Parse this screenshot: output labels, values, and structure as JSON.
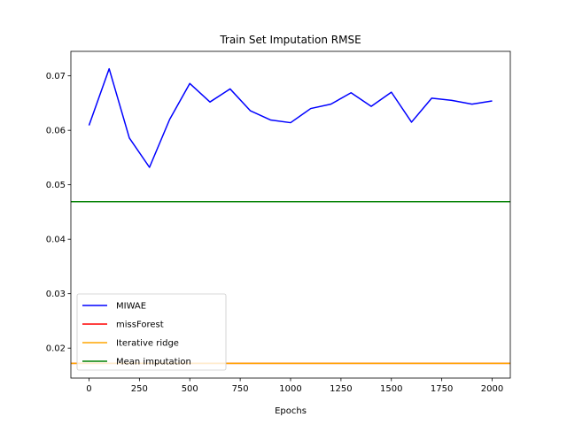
{
  "chart_data": {
    "type": "line",
    "title": "Train Set Imputation RMSE",
    "xlabel": "Epochs",
    "ylabel": "",
    "xlim": [
      -90,
      2090
    ],
    "ylim": [
      0.0145,
      0.0745
    ],
    "xticks": [
      0,
      250,
      500,
      750,
      1000,
      1250,
      1500,
      1750,
      2000
    ],
    "xtick_labels": [
      "0",
      "250",
      "500",
      "750",
      "1000",
      "1250",
      "1500",
      "1750",
      "2000"
    ],
    "yticks": [
      0.02,
      0.03,
      0.04,
      0.05,
      0.06,
      0.07
    ],
    "ytick_labels": [
      "0.02",
      "0.03",
      "0.04",
      "0.05",
      "0.06",
      "0.07"
    ],
    "grid": false,
    "legend_position": "lower-left",
    "series": [
      {
        "name": "MIWAE",
        "kind": "line",
        "color": "#0000ff",
        "x": [
          0,
          100,
          200,
          300,
          400,
          500,
          600,
          700,
          800,
          900,
          1000,
          1100,
          1200,
          1300,
          1400,
          1500,
          1600,
          1700,
          1800,
          1900,
          2000
        ],
        "y": [
          0.0609,
          0.0713,
          0.0586,
          0.0532,
          0.062,
          0.0686,
          0.0652,
          0.0676,
          0.0636,
          0.0619,
          0.0614,
          0.064,
          0.0648,
          0.0669,
          0.0644,
          0.067,
          0.0615,
          0.0659,
          0.0655,
          0.0648,
          0.0654
        ]
      },
      {
        "name": "missForest",
        "kind": "hline",
        "color": "#ff0000",
        "value": 0.0172
      },
      {
        "name": "Iterative ridge",
        "kind": "hline",
        "color": "#ffa500",
        "value": 0.0172
      },
      {
        "name": "Mean imputation",
        "kind": "hline",
        "color": "#008000",
        "value": 0.0469
      }
    ]
  }
}
